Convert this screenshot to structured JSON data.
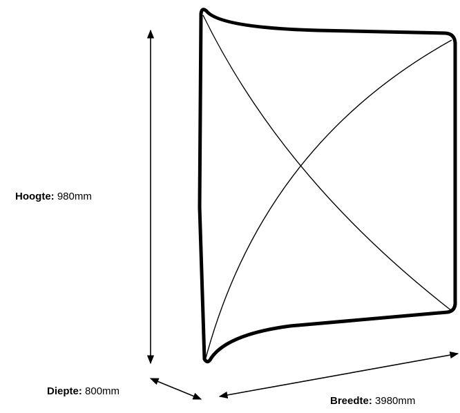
{
  "dimensions": {
    "height": {
      "name": "Hoogte:",
      "value": "980mm"
    },
    "depth": {
      "name": "Diepte:",
      "value": "800mm"
    },
    "width": {
      "name": "Breedte:",
      "value": "3980mm"
    }
  },
  "colors": {
    "stroke": "#000000",
    "background": "#ffffff"
  }
}
